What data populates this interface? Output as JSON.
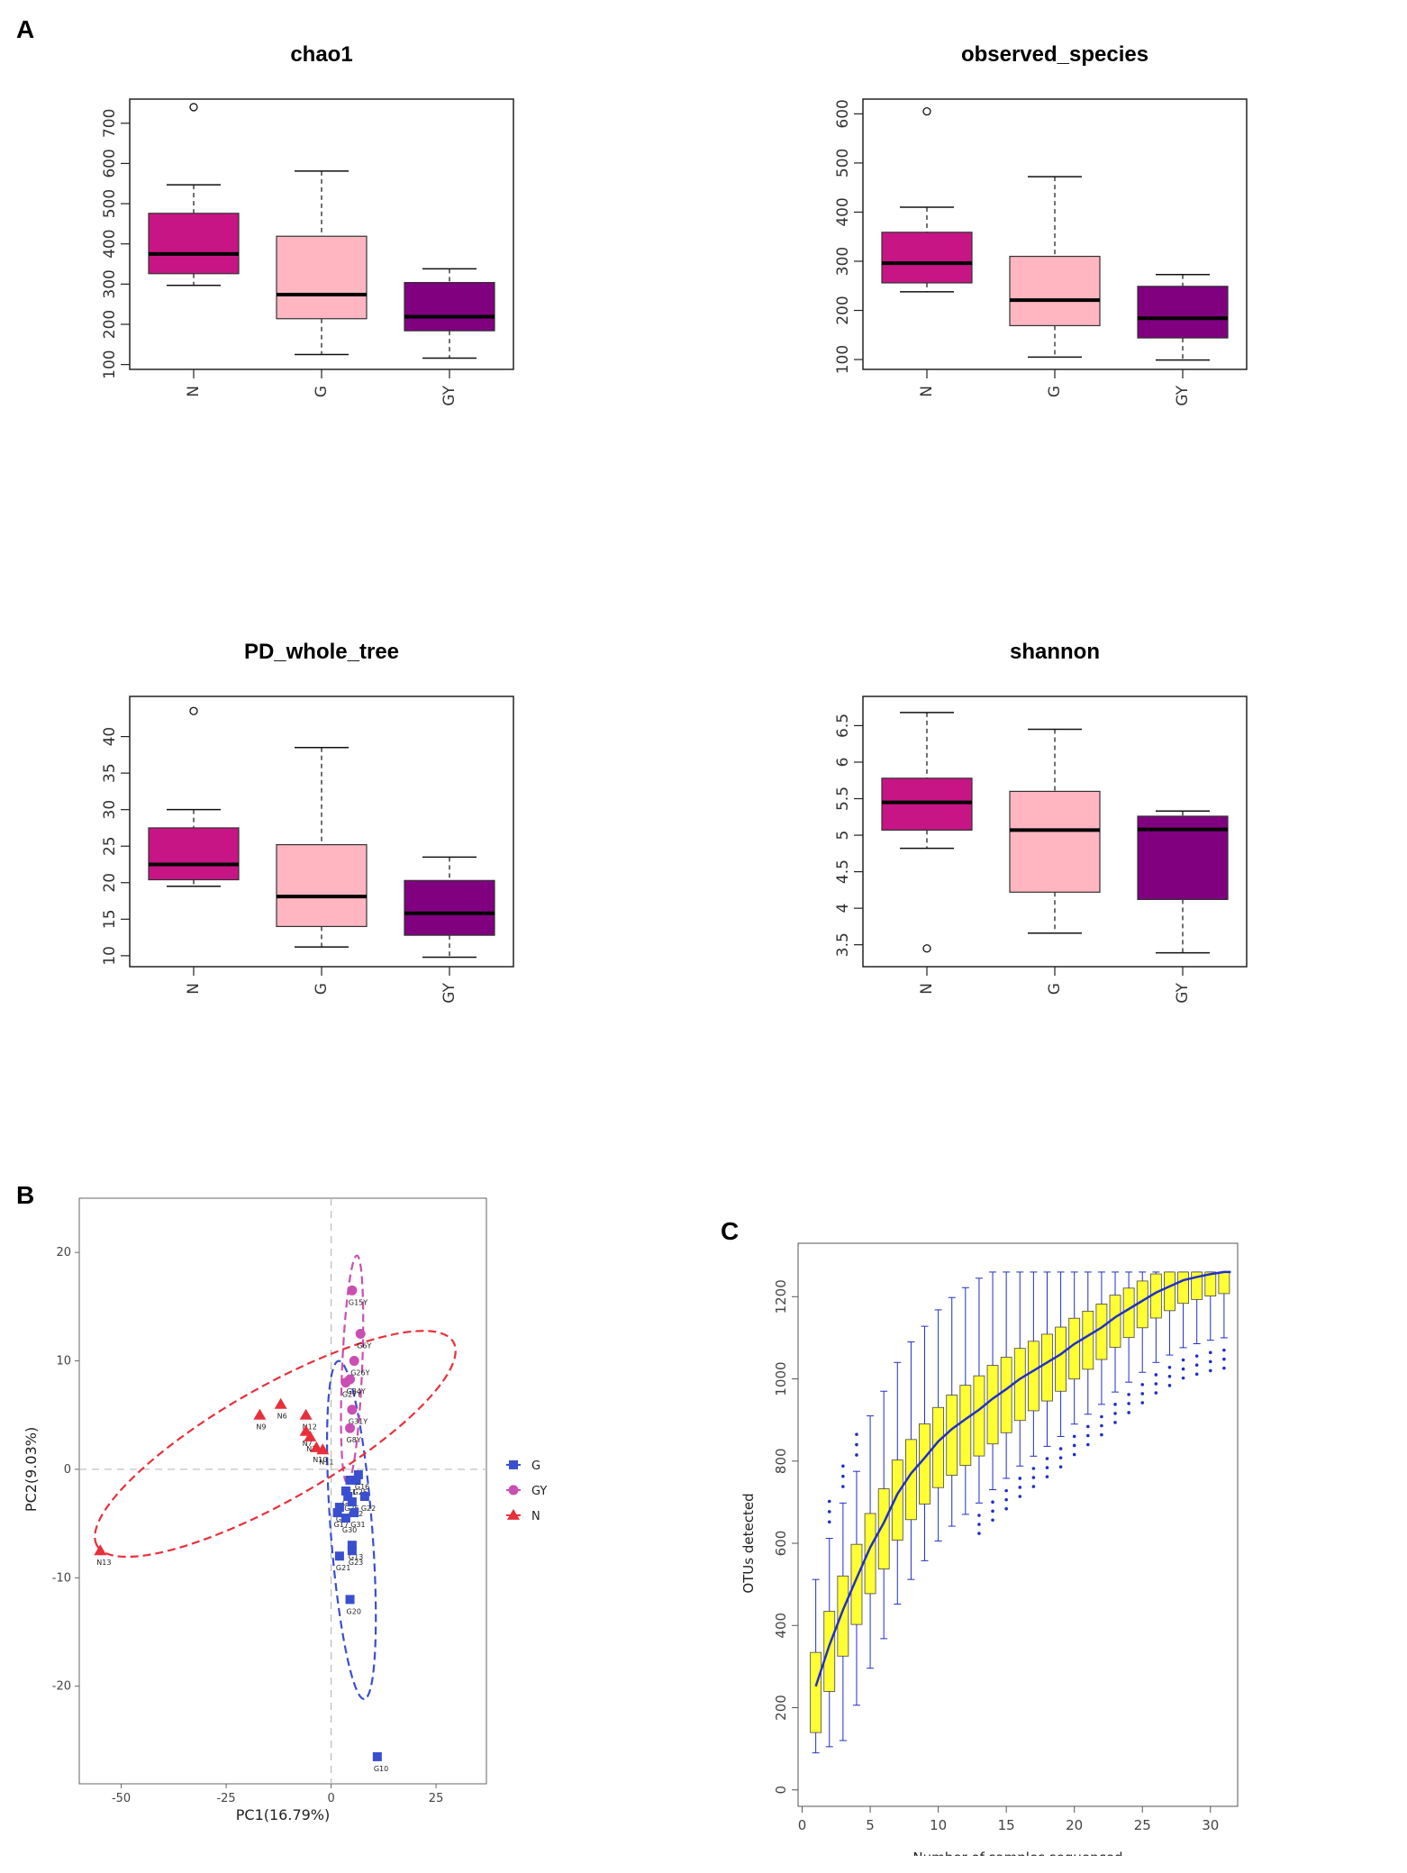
{
  "panels": {
    "a": "A",
    "b": "B",
    "c": "C"
  },
  "chart_data": [
    {
      "type": "box",
      "panel": "A",
      "title": "chao1",
      "categories": [
        "N",
        "G",
        "GY"
      ],
      "colors": [
        "#c71585",
        "#ffb6c1",
        "#800080"
      ],
      "yticks": [
        100,
        200,
        300,
        400,
        500,
        600,
        700
      ],
      "ylim": [
        88,
        760
      ],
      "boxes": [
        {
          "min": 297,
          "q1": 326,
          "median": 375,
          "q3": 476,
          "max": 547,
          "outliers": [
            740
          ]
        },
        {
          "min": 125,
          "q1": 214,
          "median": 274,
          "q3": 419,
          "max": 581,
          "outliers": []
        },
        {
          "min": 116,
          "q1": 184,
          "median": 219,
          "q3": 304,
          "max": 338,
          "outliers": []
        }
      ]
    },
    {
      "type": "box",
      "panel": "A",
      "title": "observed_species",
      "categories": [
        "N",
        "G",
        "GY"
      ],
      "colors": [
        "#c71585",
        "#ffb6c1",
        "#800080"
      ],
      "yticks": [
        100,
        200,
        300,
        400,
        500,
        600
      ],
      "ylim": [
        80,
        630
      ],
      "boxes": [
        {
          "min": 238,
          "q1": 256,
          "median": 296,
          "q3": 359,
          "max": 410,
          "outliers": [
            605
          ]
        },
        {
          "min": 105,
          "q1": 169,
          "median": 221,
          "q3": 310,
          "max": 472,
          "outliers": []
        },
        {
          "min": 99,
          "q1": 144,
          "median": 184,
          "q3": 249,
          "max": 273,
          "outliers": []
        }
      ]
    },
    {
      "type": "box",
      "panel": "A",
      "title": "PD_whole_tree",
      "categories": [
        "N",
        "G",
        "GY"
      ],
      "colors": [
        "#c71585",
        "#ffb6c1",
        "#800080"
      ],
      "yticks": [
        10,
        15,
        20,
        25,
        30,
        35,
        40
      ],
      "ylim": [
        8.5,
        45.5
      ],
      "boxes": [
        {
          "min": 19.5,
          "q1": 20.4,
          "median": 22.5,
          "q3": 27.5,
          "max": 30,
          "outliers": [
            43.5
          ]
        },
        {
          "min": 11.2,
          "q1": 14,
          "median": 18.1,
          "q3": 25.2,
          "max": 38.5,
          "outliers": []
        },
        {
          "min": 9.8,
          "q1": 12.8,
          "median": 15.8,
          "q3": 20.3,
          "max": 23.5,
          "outliers": []
        }
      ]
    },
    {
      "type": "box",
      "panel": "A",
      "title": "shannon",
      "categories": [
        "N",
        "G",
        "GY"
      ],
      "colors": [
        "#c71585",
        "#ffb6c1",
        "#800080"
      ],
      "yticks": [
        3.5,
        4.0,
        4.5,
        5.0,
        5.5,
        6.0,
        6.5
      ],
      "ylim": [
        3.2,
        6.9
      ],
      "boxes": [
        {
          "min": 4.82,
          "q1": 5.07,
          "median": 5.45,
          "q3": 5.78,
          "max": 6.68,
          "outliers": [
            3.45
          ]
        },
        {
          "min": 3.66,
          "q1": 4.22,
          "median": 5.07,
          "q3": 5.6,
          "max": 6.45,
          "outliers": []
        },
        {
          "min": 3.39,
          "q1": 4.12,
          "median": 5.08,
          "q3": 5.26,
          "max": 5.33,
          "outliers": []
        }
      ]
    },
    {
      "type": "scatter",
      "panel": "B",
      "xlabel": "PC1(16.79%)",
      "ylabel": "PC2(9.03%)",
      "xlim": [
        -60,
        37
      ],
      "ylim": [
        -29,
        25
      ],
      "xticks": [
        -50,
        -25,
        0,
        25
      ],
      "yticks": [
        -20,
        -10,
        0,
        10,
        20
      ],
      "series": [
        {
          "name": "G",
          "color": "#3a4fcf",
          "marker": "square",
          "points": [
            {
              "x": 4.5,
              "y": -1,
              "label": "G1"
            },
            {
              "x": 3.5,
              "y": -2,
              "label": "G4"
            },
            {
              "x": 6,
              "y": -1,
              "label": "G25"
            },
            {
              "x": 4,
              "y": -2.5,
              "label": "G26"
            },
            {
              "x": 5,
              "y": -3,
              "label": "G32"
            },
            {
              "x": 2,
              "y": -3.5,
              "label": "G14"
            },
            {
              "x": 1.5,
              "y": -4,
              "label": "G17"
            },
            {
              "x": 5.5,
              "y": -4,
              "label": "G31"
            },
            {
              "x": 3.5,
              "y": -4.5,
              "label": "G30"
            },
            {
              "x": 5,
              "y": -7,
              "label": "G13"
            },
            {
              "x": 5,
              "y": -7.5,
              "label": "G23"
            },
            {
              "x": 2,
              "y": -8,
              "label": "G21"
            },
            {
              "x": 4.5,
              "y": -12,
              "label": "G20"
            },
            {
              "x": 11,
              "y": -26.5,
              "label": "G10"
            },
            {
              "x": 6.5,
              "y": -0.5,
              "label": "G16"
            },
            {
              "x": 8,
              "y": -2.5,
              "label": "G22"
            }
          ]
        },
        {
          "name": "GY",
          "color": "#c94fb2",
          "marker": "circle",
          "points": [
            {
              "x": 5,
              "y": 16.5,
              "label": "G15Y"
            },
            {
              "x": 7,
              "y": 12.5,
              "label": "G6Y"
            },
            {
              "x": 5.5,
              "y": 10,
              "label": "G26Y"
            },
            {
              "x": 4.5,
              "y": 8.3,
              "label": "G34Y"
            },
            {
              "x": 3.5,
              "y": 8,
              "label": "G27Y"
            },
            {
              "x": 5,
              "y": 5.5,
              "label": "G31Y"
            },
            {
              "x": 4.5,
              "y": 3.8,
              "label": "G8Y"
            }
          ]
        },
        {
          "name": "N",
          "color": "#e8303a",
          "marker": "triangle",
          "points": [
            {
              "x": -12,
              "y": 6,
              "label": "N6"
            },
            {
              "x": -17,
              "y": 5,
              "label": "N9"
            },
            {
              "x": -6,
              "y": 5,
              "label": "N12"
            },
            {
              "x": -6,
              "y": 3.5,
              "label": "N7"
            },
            {
              "x": -5,
              "y": 3,
              "label": "N1"
            },
            {
              "x": -3.5,
              "y": 2,
              "label": "N10"
            },
            {
              "x": -2,
              "y": 1.8,
              "label": "N11"
            },
            {
              "x": -55,
              "y": -7.5,
              "label": "N13"
            }
          ]
        }
      ]
    },
    {
      "type": "box",
      "panel": "C",
      "xlabel": "Number of samples sequenced",
      "ylabel": "OTUs detected",
      "xlim": [
        -0.3,
        32
      ],
      "ylim": [
        -40,
        1330
      ],
      "xticks": [
        0,
        5,
        10,
        15,
        20,
        25,
        30
      ],
      "yticks": [
        0,
        200,
        400,
        600,
        800,
        1000,
        1200
      ],
      "n_samples": 31,
      "final_median": 1260,
      "box_fill": "#ffff33",
      "line_color": "#2030c8",
      "medians": [
        252,
        352,
        438,
        515,
        590,
        650,
        720,
        770,
        808,
        848,
        878,
        902,
        925,
        952,
        975,
        1000,
        1020,
        1040,
        1060,
        1085,
        1105,
        1125,
        1150,
        1170,
        1190,
        1210,
        1225,
        1240,
        1248,
        1255,
        1260
      ]
    }
  ]
}
